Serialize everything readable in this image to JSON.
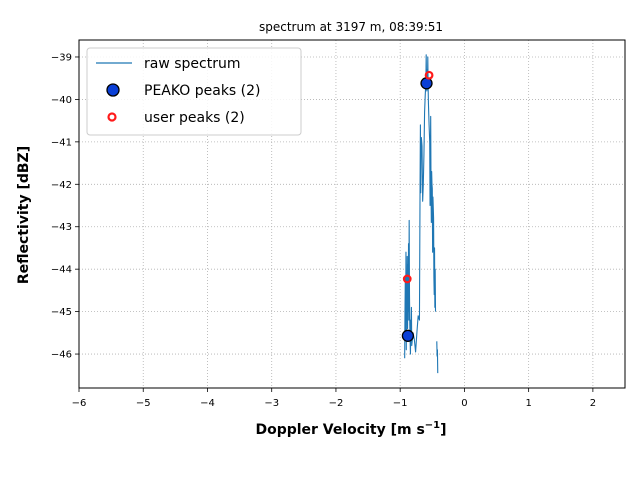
{
  "chart_data": {
    "type": "line",
    "title": "spectrum at 3197 m, 08:39:51",
    "xlabel": "Doppler Velocity [m s",
    "xlabel_exp": "−1",
    "xlabel_end": "]",
    "ylabel": "Reflectivity [dBZ]",
    "xlim": [
      -6,
      2.5
    ],
    "ylim": [
      -46.8,
      -38.6
    ],
    "xticks": [
      -6,
      -5,
      -4,
      -3,
      -2,
      -1,
      0,
      1,
      2
    ],
    "xtick_labels": [
      "−6",
      "−5",
      "−4",
      "−3",
      "−2",
      "−1",
      "0",
      "1",
      "2"
    ],
    "yticks": [
      -39,
      -40,
      -41,
      -42,
      -43,
      -44,
      -45,
      -46
    ],
    "ytick_labels": [
      "−39",
      "−40",
      "−41",
      "−42",
      "−43",
      "−44",
      "−45",
      "−46"
    ],
    "grid": true,
    "legend_position": "top-left",
    "colors": {
      "line": "#1f77b4",
      "peako_fill": "#0a3fd6",
      "user_edge": "#ff1a1a",
      "grid": "#b0b0b0"
    },
    "series": [
      {
        "name": "raw spectrum",
        "kind": "line",
        "points": [
          [
            -0.93,
            -46.1
          ],
          [
            -0.925,
            -45.0
          ],
          [
            -0.92,
            -44.2
          ],
          [
            -0.915,
            -45.5
          ],
          [
            -0.91,
            -43.6
          ],
          [
            -0.905,
            -45.9
          ],
          [
            -0.9,
            -44.3
          ],
          [
            -0.895,
            -44.8
          ],
          [
            -0.89,
            -43.7
          ],
          [
            -0.885,
            -45.4
          ],
          [
            -0.88,
            -43.9
          ],
          [
            -0.875,
            -45.0
          ],
          [
            -0.87,
            -43.4
          ],
          [
            -0.865,
            -45.2
          ],
          [
            -0.86,
            -42.85
          ],
          [
            -0.855,
            -44.6
          ],
          [
            -0.85,
            -45.3
          ],
          [
            -0.845,
            -45.7
          ],
          [
            -0.84,
            -46.0
          ],
          [
            -0.835,
            -45.2
          ],
          [
            -0.83,
            -45.6
          ],
          [
            -0.825,
            -44.9
          ],
          [
            -0.82,
            -45.8
          ],
          [
            -0.8,
            -45.5
          ],
          [
            -0.78,
            -45.65
          ],
          [
            -0.76,
            -45.95
          ],
          [
            -0.74,
            -45.5
          ],
          [
            -0.72,
            -45.1
          ],
          [
            -0.7,
            -45.2
          ],
          [
            -0.69,
            -41.9
          ],
          [
            -0.685,
            -40.6
          ],
          [
            -0.68,
            -42.2
          ],
          [
            -0.675,
            -41.3
          ],
          [
            -0.67,
            -40.9
          ],
          [
            -0.66,
            -41.1
          ],
          [
            -0.65,
            -42.4
          ],
          [
            -0.64,
            -42.0
          ],
          [
            -0.63,
            -41.3
          ],
          [
            -0.62,
            -40.3
          ],
          [
            -0.61,
            -39.9
          ],
          [
            -0.6,
            -39.6
          ],
          [
            -0.595,
            -38.95
          ],
          [
            -0.59,
            -39.5
          ],
          [
            -0.585,
            -39.8
          ],
          [
            -0.58,
            -39.3
          ],
          [
            -0.575,
            -39.6
          ],
          [
            -0.57,
            -39.0
          ],
          [
            -0.565,
            -39.7
          ],
          [
            -0.56,
            -40.1
          ],
          [
            -0.55,
            -40.6
          ],
          [
            -0.54,
            -41.0
          ],
          [
            -0.535,
            -42.5
          ],
          [
            -0.53,
            -41.6
          ],
          [
            -0.525,
            -40.4
          ],
          [
            -0.52,
            -42.1
          ],
          [
            -0.515,
            -42.9
          ],
          [
            -0.51,
            -41.7
          ],
          [
            -0.505,
            -42.0
          ],
          [
            -0.5,
            -42.1
          ],
          [
            -0.495,
            -43.6
          ],
          [
            -0.49,
            -42.3
          ],
          [
            -0.48,
            -42.8
          ],
          [
            -0.475,
            -44.2
          ],
          [
            -0.47,
            -44.6
          ],
          [
            -0.465,
            -43.5
          ],
          [
            -0.46,
            -44.9
          ],
          [
            -0.455,
            -44.0
          ],
          [
            -0.45,
            -45.0
          ],
          null,
          [
            -0.43,
            -45.7
          ],
          [
            -0.425,
            -46.05
          ],
          [
            -0.42,
            -45.9
          ],
          [
            -0.415,
            -46.45
          ]
        ]
      },
      {
        "name": "PEAKO peaks (2)",
        "kind": "marker",
        "points": [
          [
            -0.88,
            -45.57
          ],
          [
            -0.59,
            -39.62
          ]
        ]
      },
      {
        "name": "user peaks (2)",
        "kind": "marker",
        "points": [
          [
            -0.89,
            -44.23
          ],
          [
            -0.55,
            -39.43
          ]
        ]
      }
    ]
  }
}
